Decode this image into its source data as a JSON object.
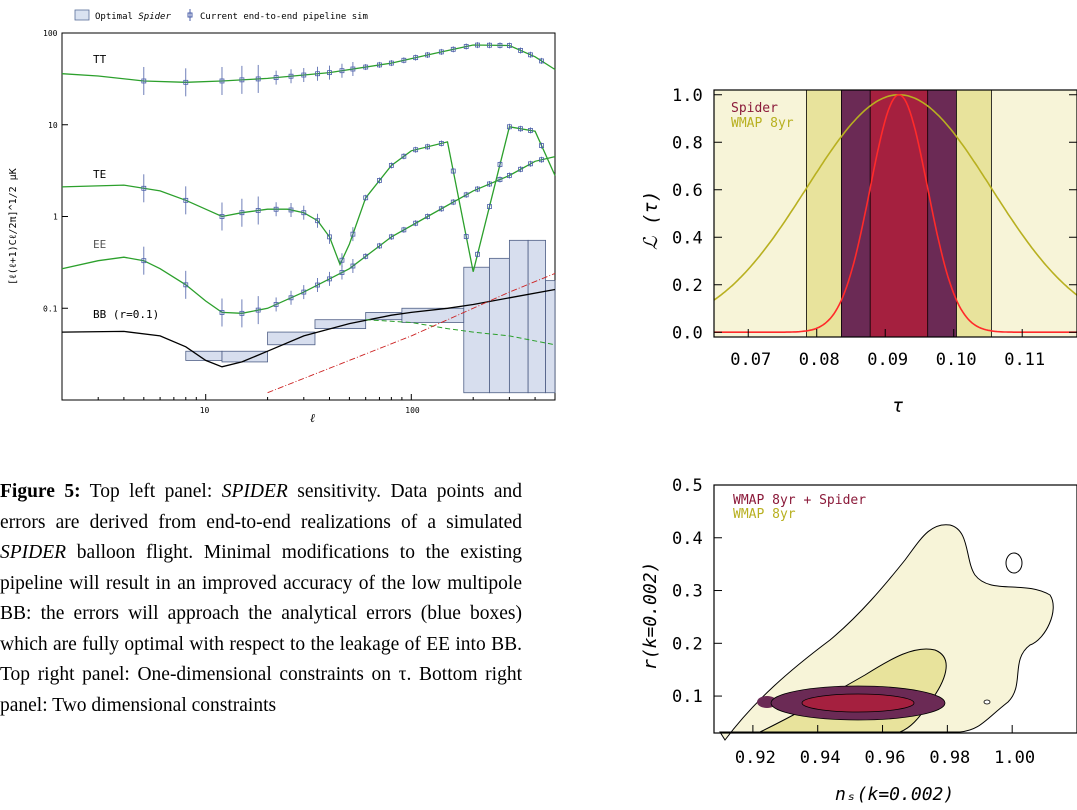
{
  "chart_data": [
    {
      "type": "line",
      "panel": "top-left",
      "legend": [
        {
          "label_a": "Optimal ",
          "label_b": "Spider",
          "kind": "box"
        },
        {
          "label": "Current end-to-end pipeline sim",
          "kind": "errorbar"
        }
      ],
      "xlabel": "ℓ",
      "ylabel": "[ℓ(ℓ+1)Cℓ/2π]^1/2 μK",
      "x_scale": "log",
      "y_scale": "log",
      "xlim": [
        2,
        500
      ],
      "ylim": [
        0.01,
        100
      ],
      "x_ticks": [
        "10",
        "100"
      ],
      "y_ticks": [
        "100",
        "10",
        "1",
        "0.1"
      ],
      "series": [
        {
          "name": "TT",
          "color": "#2ca02c",
          "x": [
            2,
            3,
            5,
            8,
            12,
            20,
            40,
            80,
            130,
            200,
            300,
            400,
            500
          ],
          "y": [
            36,
            34,
            30,
            29,
            30,
            32,
            37,
            47,
            60,
            74,
            73,
            55,
            40
          ]
        },
        {
          "name": "TE",
          "color": "#2ca02c",
          "x": [
            2,
            4,
            6,
            8,
            10,
            12,
            15,
            20,
            25,
            30,
            35,
            40,
            45,
            50,
            60,
            80,
            100,
            150,
            200,
            300,
            400,
            500
          ],
          "y": [
            2.1,
            2.2,
            1.9,
            1.5,
            1.2,
            1.0,
            1.1,
            1.2,
            1.2,
            1.1,
            0.9,
            0.6,
            0.3,
            0.5,
            1.6,
            3.6,
            5.2,
            6.5,
            0.25,
            9.5,
            8.5,
            2.8
          ]
        },
        {
          "name": "EE",
          "color": "#2ca02c",
          "x": [
            2,
            3,
            4,
            5,
            6,
            8,
            10,
            12,
            15,
            20,
            30,
            50,
            80,
            120,
            200,
            300,
            400,
            500
          ],
          "y": [
            0.27,
            0.33,
            0.36,
            0.33,
            0.27,
            0.18,
            0.12,
            0.09,
            0.088,
            0.1,
            0.15,
            0.27,
            0.6,
            1.0,
            1.9,
            2.8,
            4.0,
            4.5
          ]
        },
        {
          "name": "BB (r=0.1)",
          "color": "#000000",
          "x": [
            2,
            4,
            6,
            8,
            10,
            12,
            15,
            20,
            30,
            50,
            80,
            100,
            150,
            200,
            300,
            500
          ],
          "y": [
            0.055,
            0.056,
            0.05,
            0.038,
            0.027,
            0.023,
            0.026,
            0.034,
            0.05,
            0.068,
            0.084,
            0.09,
            0.1,
            0.11,
            0.13,
            0.16
          ]
        }
      ]
    },
    {
      "type": "line",
      "panel": "top-right",
      "legend": [
        "Spider",
        "WMAP 8yr"
      ],
      "xlabel": "τ",
      "ylabel": "ℒ (τ)",
      "xlim": [
        0.065,
        0.118
      ],
      "ylim": [
        -0.02,
        1.02
      ],
      "x_ticks": [
        "0.07",
        "0.08",
        "0.09",
        "0.10",
        "0.11"
      ],
      "y_ticks": [
        "0.0",
        "0.2",
        "0.4",
        "0.6",
        "0.8",
        "1.0"
      ],
      "series": [
        {
          "name": "Spider",
          "color": "#ff2a2a",
          "mean": 0.092,
          "sigma": 0.0042
        },
        {
          "name": "WMAP 8yr",
          "color": "#b8b020",
          "mean": 0.092,
          "sigma": 0.0135
        }
      ]
    },
    {
      "type": "area",
      "panel": "bottom-right",
      "legend": [
        "WMAP 8yr + Spider",
        "WMAP 8yr"
      ],
      "xlabel": "nₛ(k=0.002)",
      "ylabel": "r(k=0.002)",
      "xlim": [
        0.908,
        1.02
      ],
      "ylim": [
        0.03,
        0.5
      ],
      "x_ticks": [
        "0.92",
        "0.94",
        "0.96",
        "0.98",
        "1.00"
      ],
      "y_ticks": [
        "0.1",
        "0.2",
        "0.3",
        "0.4",
        "0.5"
      ]
    }
  ],
  "caption": {
    "label": "Figure 5:",
    "p1": " Top left panel: ",
    "i1": "SPIDER",
    "p2": " sensitivity. Data points and errors are derived from end-to-end realizations of a simulated ",
    "i2": "SPIDER",
    "p3": " balloon flight. Minimal modifications to the existing pipeline will result in an improved accuracy of the low multipole BB: the errors will approach the analytical errors (blue boxes) which are fully optimal with respect to the leakage of EE into BB. Top right panel: One-dimensional constraints on τ. Bottom right panel: Two dimensional constraints"
  }
}
